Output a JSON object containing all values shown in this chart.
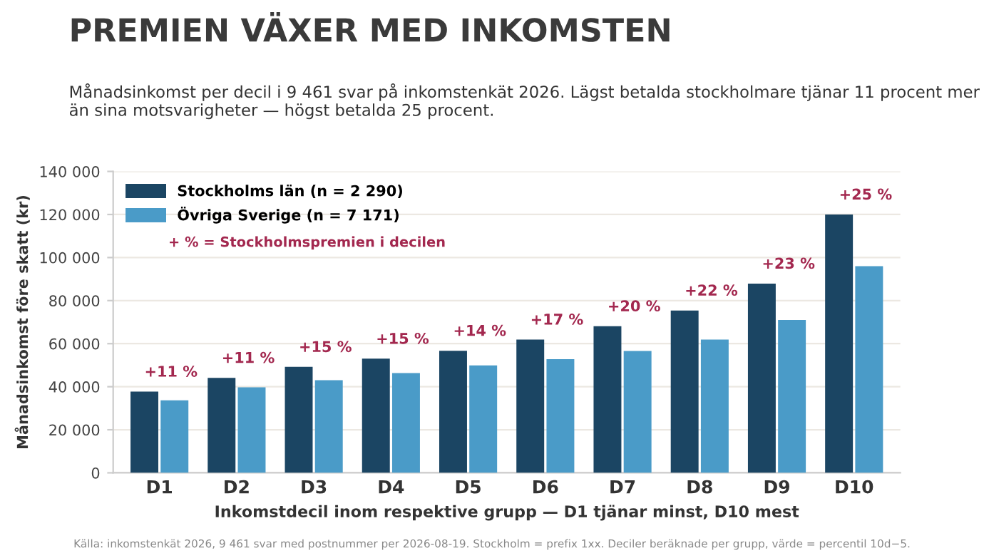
{
  "chart_data": {
    "type": "bar",
    "title": "PREMIEN VÄXER MED INKOMSTEN",
    "subtitle": "Månadsinkomst per decil i 9 461 svar på inkomstenkät 2026. Lägst betalda stockholmare tjänar 11 procent mer än sina motsvarigheter — högst betalda 25 procent.",
    "xlabel": "Inkomstdecil inom respektive grupp — D1 tjänar minst, D10 mest",
    "ylabel": "Månadsinkomst före skatt (kr)",
    "categories": [
      "D1",
      "D2",
      "D3",
      "D4",
      "D5",
      "D6",
      "D7",
      "D8",
      "D9",
      "D10"
    ],
    "series": [
      {
        "name": "Stockholms län (n = 2 290)",
        "color": "#1b4563",
        "values": [
          37700,
          44100,
          49200,
          53000,
          56700,
          61900,
          68100,
          75400,
          87900,
          120000
        ]
      },
      {
        "name": "Övriga Sverige (n = 7 171)",
        "color": "#4a9bc8",
        "values": [
          33700,
          39700,
          43000,
          46300,
          49900,
          52800,
          56600,
          61900,
          71000,
          96000
        ]
      }
    ],
    "ylim": [
      0,
      140000
    ],
    "yticks": [
      {
        "value": 0,
        "label": "0"
      },
      {
        "value": 20000,
        "label": "20 000"
      },
      {
        "value": 40000,
        "label": "40 000"
      },
      {
        "value": 60000,
        "label": "60 000"
      },
      {
        "value": 80000,
        "label": "80 000"
      },
      {
        "value": 100000,
        "label": "100 000"
      },
      {
        "value": 120000,
        "label": "120 000"
      },
      {
        "value": 140000,
        "label": "140 000"
      }
    ],
    "grid": "y",
    "legend": "top left",
    "annotations": [
      {
        "text": "+11 %",
        "x": "D1",
        "y": 37700
      },
      {
        "text": "+11 %",
        "x": "D2",
        "y": 44100
      },
      {
        "text": "+15 %",
        "x": "D3",
        "y": 49200
      },
      {
        "text": "+15 %",
        "x": "D4",
        "y": 53000
      },
      {
        "text": "+14 %",
        "x": "D5",
        "y": 56700
      },
      {
        "text": "+17 %",
        "x": "D6",
        "y": 61900
      },
      {
        "text": "+20 %",
        "x": "D7",
        "y": 68100
      },
      {
        "text": "+22 %",
        "x": "D8",
        "y": 75400
      },
      {
        "text": "+23 %",
        "x": "D9",
        "y": 87900
      },
      {
        "text": "+25 %",
        "x": "D10",
        "y": 120000
      },
      "+ % = Stockholmspremien i decilen",
      "Källa: inkomstenkät 2026, 9 461 svar med postnummer per 2026-08-19. Stockholm = prefix 1xx. Deciler beräknade per grupp, värde = percentil 10d−5."
    ]
  }
}
